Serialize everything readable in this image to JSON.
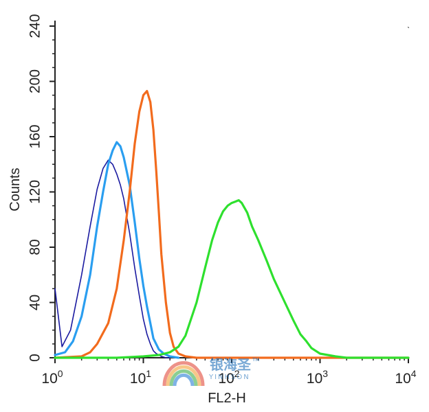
{
  "chart_data": {
    "type": "line",
    "title": "",
    "xlabel": "FL2-H",
    "ylabel": "Counts",
    "x_scale": "log",
    "xlim": [
      1,
      10000
    ],
    "ylim": [
      0,
      240
    ],
    "x_ticks": [
      1,
      10,
      100,
      1000,
      10000
    ],
    "y_ticks": [
      0,
      40,
      80,
      120,
      160,
      200,
      240
    ],
    "y_tick_labels": [
      "0",
      "40",
      "80",
      "120",
      "160",
      "200",
      "240"
    ],
    "grid": false,
    "legend": "none",
    "series": [
      {
        "color": "#1a1aa0",
        "x": [
          1,
          1.2,
          1.5,
          2,
          2.5,
          3,
          3.5,
          4,
          4.5,
          5,
          5.5,
          6,
          7,
          8,
          9,
          10,
          11,
          12,
          13,
          14,
          15,
          16,
          18,
          20
        ],
        "y": [
          50,
          8,
          20,
          60,
          95,
          122,
          137,
          143,
          140,
          133,
          125,
          115,
          90,
          65,
          45,
          28,
          17,
          10,
          5,
          3,
          2,
          1,
          0,
          0
        ]
      },
      {
        "color": "#2a9ef0",
        "x": [
          1,
          1.3,
          1.6,
          2,
          2.5,
          3,
          3.5,
          4,
          4.5,
          5,
          5.5,
          6,
          7,
          8,
          9,
          10,
          11,
          12,
          13,
          15,
          17,
          20,
          25
        ],
        "y": [
          2,
          4,
          12,
          30,
          60,
          95,
          120,
          140,
          150,
          156,
          153,
          145,
          125,
          98,
          72,
          52,
          37,
          25,
          14,
          6,
          3,
          1,
          0
        ]
      },
      {
        "color": "#f26b1d",
        "x": [
          1,
          2,
          2.5,
          3,
          4,
          5,
          6,
          7,
          8,
          9,
          10,
          11,
          12,
          13,
          14,
          15,
          16,
          18,
          20,
          22,
          25,
          30,
          40,
          60,
          100,
          1000,
          10000
        ],
        "y": [
          0,
          1,
          4,
          10,
          25,
          50,
          85,
          120,
          155,
          178,
          190,
          193,
          185,
          165,
          135,
          105,
          75,
          40,
          18,
          8,
          3,
          1,
          0,
          0,
          0,
          0,
          0
        ]
      },
      {
        "color": "#2ee02e",
        "x": [
          1,
          5,
          10,
          15,
          20,
          25,
          30,
          40,
          50,
          60,
          70,
          80,
          90,
          100,
          110,
          120,
          130,
          150,
          170,
          200,
          250,
          300,
          400,
          500,
          600,
          700,
          800,
          1000,
          1500,
          2000,
          5000,
          10000
        ],
        "y": [
          0,
          0,
          1,
          2,
          4,
          8,
          16,
          40,
          65,
          85,
          98,
          106,
          110,
          112,
          113,
          114,
          112,
          105,
          95,
          85,
          70,
          57,
          40,
          27,
          17,
          12,
          7,
          3,
          1,
          0,
          0,
          0
        ]
      }
    ]
  },
  "watermark": {
    "name": "银海圣",
    "sub": "YINHSON",
    "tm": "TM",
    "colors": [
      "#e24a3b",
      "#f2a23a",
      "#3fae49",
      "#2a7fd4"
    ]
  },
  "misc_mark": "ˎ"
}
